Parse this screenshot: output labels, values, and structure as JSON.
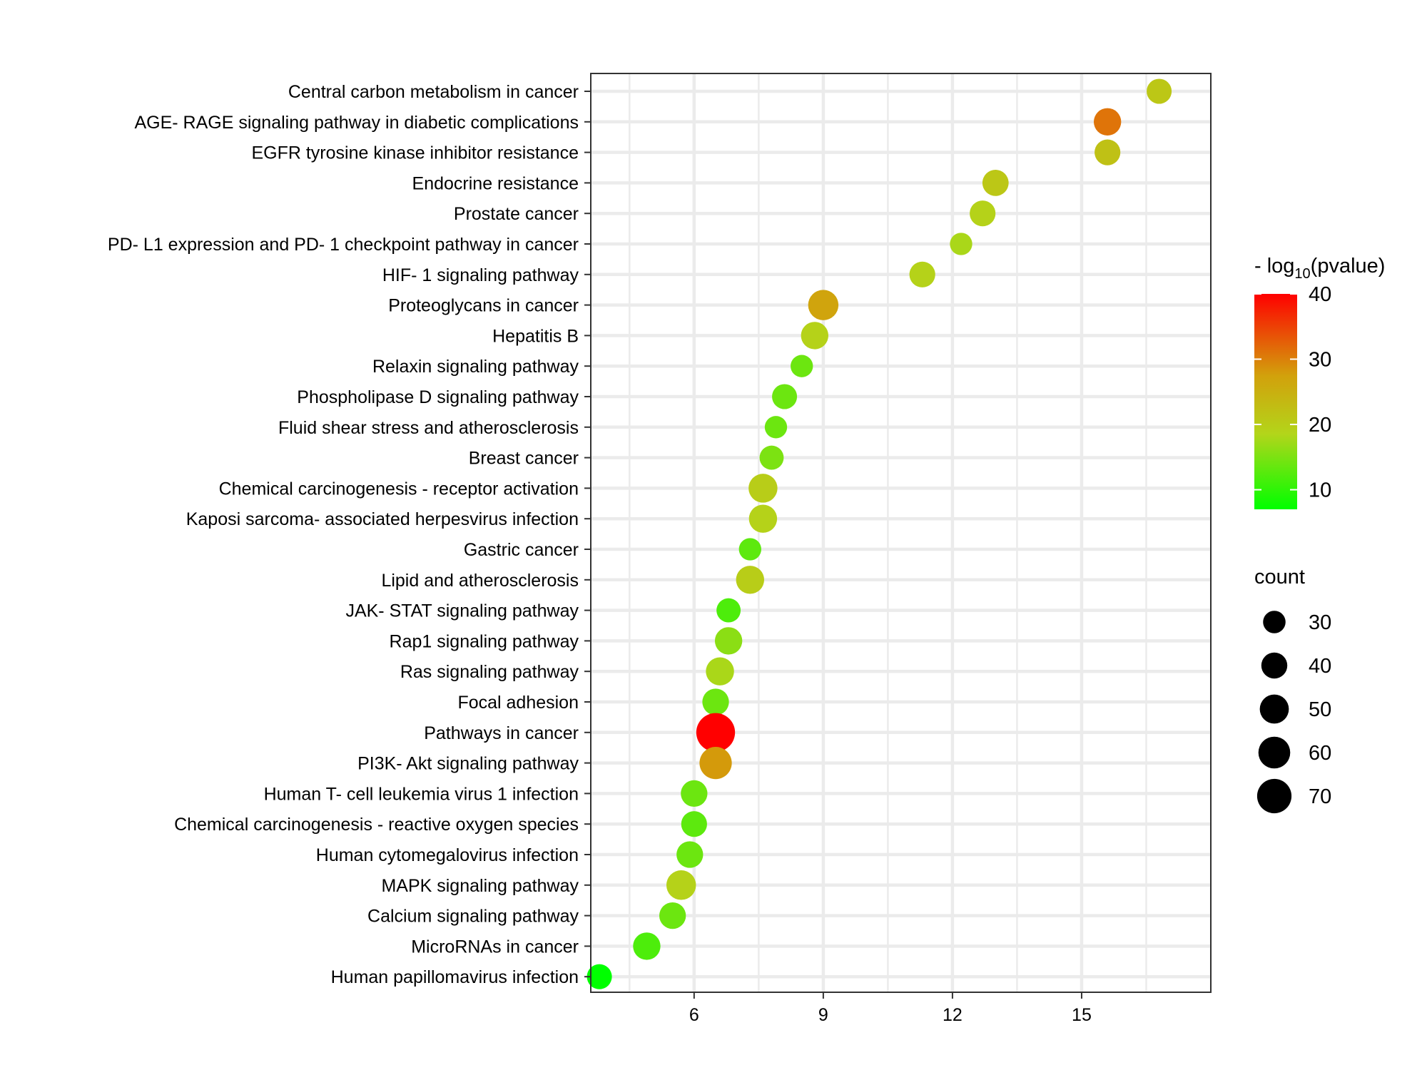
{
  "chart_data": {
    "type": "scatter",
    "title": "",
    "xlabel": "",
    "ylabel": "",
    "xlim": [
      3.6,
      18.0
    ],
    "xticks": [
      6,
      9,
      12,
      15
    ],
    "grid": true,
    "categories": [
      "Central carbon metabolism in cancer",
      "AGE- RAGE signaling pathway in diabetic complications",
      "EGFR tyrosine kinase inhibitor resistance",
      "Endocrine resistance",
      "Prostate cancer",
      "PD- L1 expression and PD- 1 checkpoint pathway in cancer",
      "HIF- 1 signaling pathway",
      "Proteoglycans in cancer",
      "Hepatitis B",
      "Relaxin signaling pathway",
      "Phospholipase D signaling pathway",
      "Fluid shear stress and atherosclerosis",
      "Breast cancer",
      "Chemical carcinogenesis -  receptor activation",
      "Kaposi sarcoma- associated herpesvirus infection",
      "Gastric cancer",
      "Lipid and atherosclerosis",
      "JAK- STAT signaling pathway",
      "Rap1 signaling pathway",
      "Ras signaling pathway",
      "Focal adhesion",
      "Pathways in cancer",
      "PI3K- Akt signaling pathway",
      "Human T- cell leukemia virus 1 infection",
      "Chemical carcinogenesis -  reactive oxygen species",
      "Human cytomegalovirus infection",
      "MAPK signaling pathway",
      "Calcium signaling pathway",
      "MicroRNAs in cancer",
      "Human papillomavirus infection"
    ],
    "x": [
      16.8,
      15.6,
      15.6,
      13.0,
      12.7,
      12.2,
      11.3,
      9.0,
      8.8,
      8.5,
      8.1,
      7.9,
      7.8,
      7.6,
      7.6,
      7.3,
      7.3,
      6.8,
      6.8,
      6.6,
      6.5,
      6.5,
      6.5,
      6.0,
      6.0,
      5.9,
      5.7,
      5.5,
      4.9,
      3.8
    ],
    "count": [
      30,
      36,
      32,
      33,
      32,
      24,
      32,
      44,
      36,
      24,
      30,
      24,
      28,
      40,
      38,
      24,
      38,
      28,
      36,
      38,
      34,
      72,
      50,
      34,
      32,
      34,
      42,
      34,
      36,
      30
    ],
    "pvalue": [
      21,
      31,
      22,
      21,
      19,
      18,
      19,
      27,
      19,
      14,
      14,
      14,
      15,
      20,
      19,
      13,
      20,
      12,
      16,
      18,
      14,
      40,
      28,
      14,
      13,
      14,
      19,
      14,
      12,
      7
    ],
    "color_legend": {
      "title_prefix": "- log",
      "title_sub": "10",
      "title_suffix": "(pvalue)",
      "range": [
        7,
        40
      ],
      "ticks": [
        10,
        20,
        30,
        40
      ],
      "gradient": [
        "#00ff00",
        "#b3d51a",
        "#d2a10c",
        "#ff0000"
      ]
    },
    "size_legend": {
      "title": "count",
      "values": [
        30,
        40,
        50,
        60,
        70
      ]
    }
  }
}
